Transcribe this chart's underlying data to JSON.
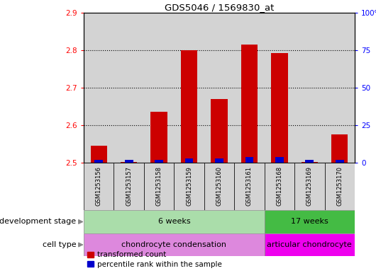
{
  "title": "GDS5046 / 1569830_at",
  "samples": [
    "GSM1253156",
    "GSM1253157",
    "GSM1253158",
    "GSM1253159",
    "GSM1253160",
    "GSM1253161",
    "GSM1253168",
    "GSM1253169",
    "GSM1253170"
  ],
  "red_values": [
    2.545,
    2.502,
    2.635,
    2.8,
    2.67,
    2.815,
    2.793,
    2.502,
    2.575
  ],
  "blue_values_pct": [
    2,
    2,
    2,
    3,
    3,
    4,
    4,
    2,
    2
  ],
  "ylim_left": [
    2.5,
    2.9
  ],
  "ylim_right": [
    0,
    100
  ],
  "yticks_left": [
    2.5,
    2.6,
    2.7,
    2.8,
    2.9
  ],
  "yticks_right": [
    0,
    25,
    50,
    75,
    100
  ],
  "ytick_labels_right": [
    "0",
    "25",
    "50",
    "75",
    "100%"
  ],
  "bar_base": 2.5,
  "dev_groups": [
    {
      "label": "6 weeks",
      "start": 0,
      "end": 5,
      "color": "#aaddaa"
    },
    {
      "label": "17 weeks",
      "start": 6,
      "end": 8,
      "color": "#44bb44"
    }
  ],
  "cell_types": [
    {
      "label": "chondrocyte condensation",
      "start": 0,
      "end": 5,
      "color": "#dd88dd"
    },
    {
      "label": "articular chondrocyte",
      "start": 6,
      "end": 8,
      "color": "#ee00ee"
    }
  ],
  "dev_label": "development stage",
  "cell_label": "cell type",
  "legend_red": "transformed count",
  "legend_blue": "percentile rank within the sample",
  "red_color": "#cc0000",
  "blue_color": "#0000cc",
  "bg_color": "#d3d3d3",
  "plot_bg": "#ffffff",
  "grid_color": "#000000",
  "grid_dots": "dotted"
}
